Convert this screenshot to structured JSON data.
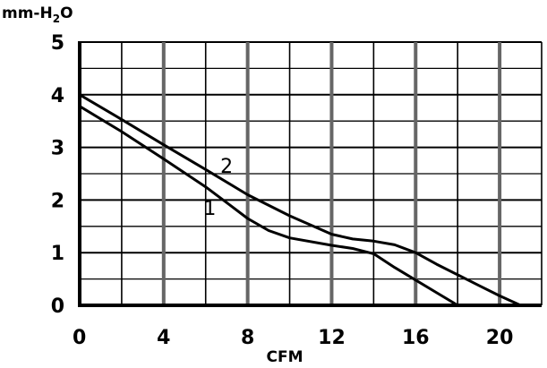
{
  "chart_data": {
    "type": "line",
    "ylabel_main": "mm-H",
    "ylabel_sub": "2",
    "ylabel_tail": "O",
    "xlabel": "CFM",
    "xlim": [
      0,
      22
    ],
    "ylim": [
      0,
      5
    ],
    "x_ticks": [
      0,
      4,
      8,
      12,
      16,
      20
    ],
    "x_tick_labels": [
      "0",
      "4",
      "8",
      "12",
      "16",
      "20"
    ],
    "y_ticks": [
      0,
      1,
      2,
      3,
      4,
      5
    ],
    "y_tick_labels": [
      "0",
      "1",
      "2",
      "3",
      "4",
      "5"
    ],
    "x_minor_step": 2,
    "y_minor_step": 0.5,
    "grid": true,
    "series": [
      {
        "name": "1",
        "x": [
          0,
          2,
          4,
          6,
          7,
          8,
          9,
          10,
          12,
          13,
          14,
          15,
          16,
          17,
          18
        ],
        "y": [
          3.78,
          3.3,
          2.78,
          2.25,
          1.95,
          1.65,
          1.42,
          1.28,
          1.14,
          1.08,
          0.98,
          0.72,
          0.48,
          0.24,
          0
        ]
      },
      {
        "name": "2",
        "x": [
          0,
          2,
          4,
          6,
          8,
          10,
          12,
          13,
          14,
          15,
          16,
          17,
          18,
          19,
          20,
          21
        ],
        "y": [
          4.0,
          3.53,
          3.05,
          2.58,
          2.1,
          1.7,
          1.35,
          1.26,
          1.22,
          1.15,
          1.0,
          0.78,
          0.58,
          0.38,
          0.18,
          0
        ]
      }
    ],
    "curve_labels": [
      {
        "text": "1",
        "x": 6.2,
        "y": 1.72
      },
      {
        "text": "2",
        "x": 7.0,
        "y": 2.52
      }
    ],
    "colors": {
      "line": "#000000",
      "grid": "#000000",
      "grid_major": "#666666"
    }
  }
}
